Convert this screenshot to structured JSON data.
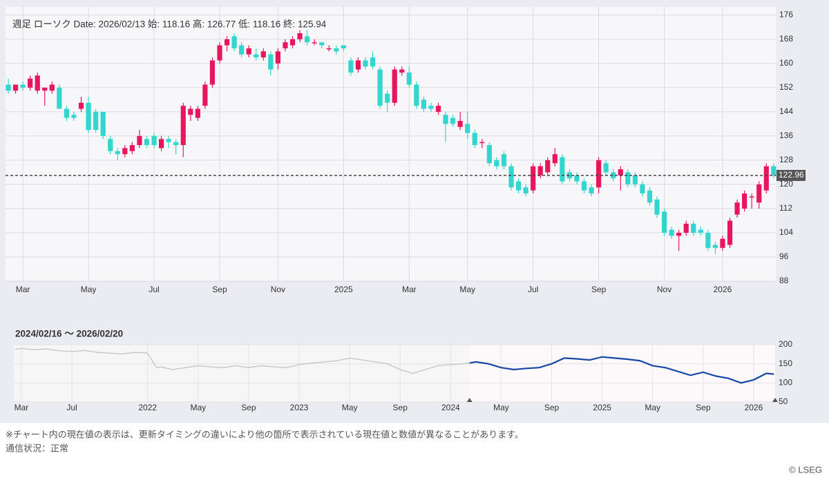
{
  "chart_data": [
    {
      "type": "candlestick",
      "info": "週足 ローソク   Date: 2026/02/13 始: 118.16 高: 126.77 低: 118.16 終: 125.94",
      "open": [
        153,
        151,
        153,
        152,
        151,
        151,
        151,
        152,
        145,
        143,
        145,
        147,
        144,
        144,
        135,
        131,
        130,
        131,
        133,
        135,
        136,
        132,
        135,
        134,
        133,
        143,
        142,
        146,
        153,
        161,
        166,
        169,
        166,
        163,
        163,
        162,
        163,
        160,
        165,
        166,
        168,
        169,
        167,
        167,
        165,
        165,
        166,
        161,
        158,
        161,
        162,
        158,
        150,
        147,
        157,
        157,
        153,
        148,
        146,
        144,
        143,
        142,
        139,
        140,
        137,
        134,
        133,
        128,
        130,
        126,
        121,
        119,
        118,
        123,
        124,
        127,
        129,
        124,
        123,
        121,
        119,
        119,
        127,
        124,
        123,
        124,
        123,
        120,
        118,
        115,
        111,
        105,
        103,
        104,
        107,
        105,
        104,
        100,
        99,
        100,
        110,
        112,
        116,
        114,
        118,
        126
      ],
      "high": [
        155,
        153,
        154,
        156,
        157,
        152,
        154,
        153,
        146,
        144,
        149,
        149,
        145,
        144,
        136,
        132,
        133,
        134,
        138,
        136,
        137,
        136,
        136,
        135,
        147,
        146,
        146,
        154,
        162,
        167,
        169,
        170,
        167,
        166,
        165,
        165,
        164,
        165,
        168,
        169,
        171,
        171,
        168,
        167,
        166,
        166,
        166,
        162,
        162,
        162,
        164,
        159,
        151,
        159,
        159,
        159,
        154,
        149,
        147,
        147,
        144,
        143,
        144,
        144,
        138,
        135,
        134,
        129,
        131,
        127,
        122,
        120,
        127,
        127,
        129,
        132,
        130,
        125,
        124,
        122,
        120,
        129,
        128,
        125,
        126,
        125,
        124,
        121,
        119,
        116,
        112,
        106,
        105,
        108,
        108,
        106,
        105,
        101,
        103,
        109,
        115,
        118,
        117,
        121,
        127,
        127
      ],
      "low": [
        150,
        150,
        151,
        151,
        150,
        146,
        150,
        145,
        141,
        141,
        144,
        137,
        137,
        135,
        130,
        128,
        129,
        130,
        132,
        132,
        132,
        131,
        132,
        130,
        129,
        141,
        141,
        145,
        152,
        160,
        164,
        164,
        162,
        162,
        161,
        161,
        156,
        158,
        164,
        165,
        167,
        166,
        166,
        165,
        164,
        163,
        164,
        156,
        157,
        158,
        158,
        145,
        144,
        146,
        156,
        152,
        145,
        144,
        144,
        143,
        134,
        139,
        138,
        135,
        132,
        132,
        126,
        125,
        125,
        118,
        117,
        116,
        117,
        122,
        123,
        126,
        120,
        121,
        120,
        117,
        116,
        117,
        123,
        121,
        118,
        119,
        119,
        116,
        113,
        109,
        103,
        102,
        98,
        103,
        103,
        103,
        98,
        97,
        98,
        99,
        109,
        111,
        112,
        112,
        117,
        122
      ],
      "close": [
        151,
        153,
        152,
        155,
        156,
        152,
        153,
        145,
        142,
        142,
        147,
        138,
        138,
        136,
        131,
        130,
        132,
        133,
        136,
        133,
        133,
        135,
        134,
        133,
        146,
        145,
        145,
        153,
        161,
        166,
        168,
        165,
        163,
        165,
        162,
        164,
        158,
        164,
        167,
        168,
        170,
        167,
        167,
        166,
        165,
        164,
        165,
        157,
        161,
        159,
        159,
        146,
        147,
        158,
        158,
        153,
        146,
        145,
        145,
        146,
        140,
        140,
        141,
        137,
        133,
        134,
        127,
        126,
        126,
        119,
        118,
        117,
        126,
        126,
        128,
        130,
        121,
        122,
        121,
        118,
        117,
        128,
        124,
        122,
        125,
        120,
        120,
        117,
        114,
        110,
        104,
        103,
        104,
        107,
        104,
        104,
        99,
        99,
        102,
        108,
        114,
        117,
        116,
        120,
        126,
        123
      ],
      "up_color": "#e8175d",
      "down_color": "#33d6cf",
      "xlim": [
        -0.38,
        105.3
      ],
      "xticks": [
        {
          "value": 2,
          "label": "Mar"
        },
        {
          "value": 11,
          "label": "May"
        },
        {
          "value": 20,
          "label": "Jul"
        },
        {
          "value": 29,
          "label": "Sep"
        },
        {
          "value": 37,
          "label": "Nov"
        },
        {
          "value": 46,
          "label": "2025"
        },
        {
          "value": 55,
          "label": "Mar"
        },
        {
          "value": 63,
          "label": "May"
        },
        {
          "value": 72,
          "label": "Jul"
        },
        {
          "value": 81,
          "label": "Sep"
        },
        {
          "value": 90,
          "label": "Nov"
        },
        {
          "value": 98,
          "label": "2026"
        }
      ],
      "ylim": [
        88,
        178.7
      ],
      "yticks": [
        88,
        96,
        104,
        112,
        120,
        128,
        136,
        144,
        152,
        160,
        168,
        176
      ],
      "current_price": 122.96,
      "grid": true
    },
    {
      "type": "line",
      "range_label": "2024/02/16 ～ 2026/02/20",
      "series": [
        {
          "color": "#c4c4c4",
          "x": [
            -0.5,
            0,
            1,
            2,
            3,
            4,
            5,
            6,
            7,
            8,
            9,
            10,
            10.7,
            11,
            12,
            13,
            14,
            15,
            16,
            17,
            18,
            19,
            20,
            21,
            22,
            23,
            24,
            25,
            26,
            27,
            28,
            29,
            30,
            31,
            32,
            33,
            34,
            35,
            35.5
          ],
          "values": [
            188,
            190,
            187,
            189,
            184,
            182,
            185,
            180,
            178,
            176,
            180,
            178,
            140,
            142,
            135,
            140,
            145,
            142,
            140,
            145,
            140,
            145,
            142,
            140,
            148,
            152,
            155,
            158,
            165,
            160,
            155,
            150,
            135,
            125,
            135,
            145,
            148,
            150,
            152
          ]
        },
        {
          "color": "#1747a6",
          "x": [
            35.5,
            36,
            37,
            38,
            39,
            40,
            41,
            42,
            43,
            44,
            45,
            46,
            47,
            48,
            49,
            50,
            51,
            52,
            53,
            54,
            55,
            56,
            57,
            58,
            59,
            59.6
          ],
          "values": [
            152,
            155,
            150,
            140,
            135,
            138,
            140,
            150,
            165,
            163,
            160,
            168,
            165,
            162,
            158,
            145,
            140,
            130,
            120,
            128,
            118,
            112,
            100,
            108,
            125,
            123
          ]
        }
      ],
      "xlim": [
        -0.6,
        59.7
      ],
      "xticks": [
        {
          "value": 0,
          "label": "Mar"
        },
        {
          "value": 4,
          "label": "Jul"
        },
        {
          "value": 10,
          "label": "2022"
        },
        {
          "value": 14,
          "label": "May"
        },
        {
          "value": 18,
          "label": "Sep"
        },
        {
          "value": 22,
          "label": "2023"
        },
        {
          "value": 26,
          "label": "May"
        },
        {
          "value": 30,
          "label": "Sep"
        },
        {
          "value": 34,
          "label": "2024"
        },
        {
          "value": 38,
          "label": "May"
        },
        {
          "value": 42,
          "label": "Sep"
        },
        {
          "value": 46,
          "label": "2025"
        },
        {
          "value": 50,
          "label": "May"
        },
        {
          "value": 54,
          "label": "Sep"
        },
        {
          "value": 58,
          "label": "2026"
        }
      ],
      "ylim": [
        50,
        200
      ],
      "yticks": [
        200,
        150,
        100,
        50
      ]
    }
  ],
  "notes": [
    "※チャート内の現在値の表示は、更新タイミングの違いにより他の箇所で表示されている現在値と数値が異なることがあります。",
    "通信状況：正常"
  ],
  "copyright": "© LSEG"
}
